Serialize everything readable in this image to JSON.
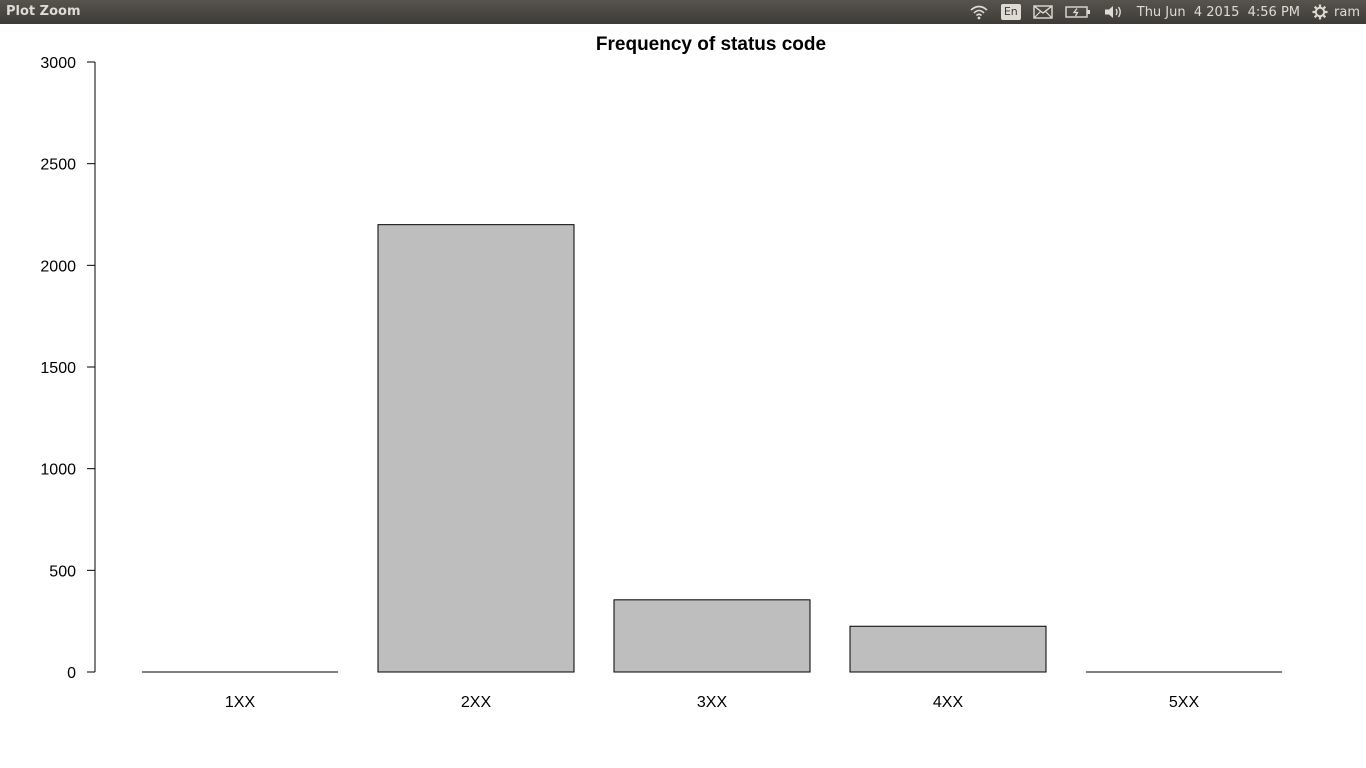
{
  "window": {
    "title": "Plot Zoom"
  },
  "panel": {
    "language": "En",
    "datetime": "Thu Jun  4 2015  4:56 PM",
    "user": "ram",
    "icons": [
      "wifi-icon",
      "language-icon",
      "mail-icon",
      "battery-icon",
      "volume-icon",
      "gear-icon"
    ]
  },
  "chart_data": {
    "type": "bar",
    "title": "Frequency of status code",
    "xlabel": "",
    "ylabel": "",
    "categories": [
      "1XX",
      "2XX",
      "3XX",
      "4XX",
      "5XX"
    ],
    "values": [
      0,
      2200,
      355,
      225,
      0
    ],
    "ylim": [
      0,
      3000
    ],
    "yticks": [
      0,
      500,
      1000,
      1500,
      2000,
      2500,
      3000
    ],
    "grid": false,
    "bar_color": "#bebebe",
    "bar_border_color": "#000000"
  }
}
